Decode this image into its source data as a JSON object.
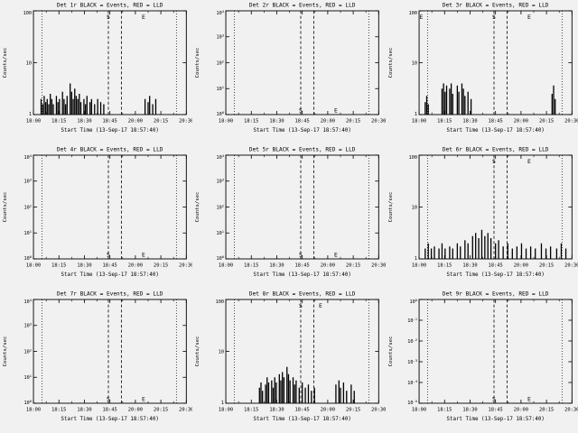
{
  "window": {
    "background": "#f1f1f1",
    "foreground": "#000000"
  },
  "chart_data": [
    {
      "id": "det-1r",
      "title": "Det 1r BLACK = Events, RED = LLD",
      "type": "bar",
      "y_scale": "log",
      "xlabel": "Start Time (13-Sep-17 18:57:40)",
      "ylabel": "Counts/sec",
      "x_ticks": [
        "18:00",
        "18:15",
        "18:30",
        "18:45",
        "20:00",
        "20:15",
        "20:30"
      ],
      "y_ticks": [
        "100",
        "10",
        "1"
      ],
      "y_tick_style": "plain",
      "dotted_lines_x": [
        0.055,
        0.935
      ],
      "dashed_lines_x": [
        0.49,
        0.575
      ],
      "markers": [
        {
          "char": "S",
          "x": 0.49,
          "pos": "top"
        },
        {
          "char": "E",
          "x": 0.72,
          "pos": "top"
        }
      ],
      "bars": [
        [
          0.05,
          0.15
        ],
        [
          0.06,
          0.1
        ],
        [
          0.07,
          0.18
        ],
        [
          0.08,
          0.12
        ],
        [
          0.09,
          0.15
        ],
        [
          0.1,
          0.1
        ],
        [
          0.11,
          0.2
        ],
        [
          0.12,
          0.15
        ],
        [
          0.13,
          0.1
        ],
        [
          0.15,
          0.18
        ],
        [
          0.16,
          0.12
        ],
        [
          0.17,
          0.15
        ],
        [
          0.19,
          0.22
        ],
        [
          0.2,
          0.15
        ],
        [
          0.21,
          0.1
        ],
        [
          0.22,
          0.18
        ],
        [
          0.24,
          0.3
        ],
        [
          0.25,
          0.22
        ],
        [
          0.26,
          0.15
        ],
        [
          0.27,
          0.25
        ],
        [
          0.28,
          0.18
        ],
        [
          0.29,
          0.15
        ],
        [
          0.3,
          0.2
        ],
        [
          0.31,
          0.12
        ],
        [
          0.33,
          0.15
        ],
        [
          0.34,
          0.1
        ],
        [
          0.35,
          0.18
        ],
        [
          0.37,
          0.12
        ],
        [
          0.38,
          0.15
        ],
        [
          0.4,
          0.1
        ],
        [
          0.42,
          0.15
        ],
        [
          0.44,
          0.12
        ],
        [
          0.46,
          0.1
        ],
        [
          0.73,
          0.15
        ],
        [
          0.75,
          0.12
        ],
        [
          0.76,
          0.18
        ],
        [
          0.78,
          0.1
        ],
        [
          0.8,
          0.15
        ]
      ]
    },
    {
      "id": "det-2r",
      "title": "Det 2r BLACK = Events, RED = LLD",
      "type": "bar",
      "y_scale": "log",
      "xlabel": "Start Time (13-Sep-17 18:57:40)",
      "ylabel": "Counts/sec",
      "x_ticks": [
        "18:00",
        "18:15",
        "18:30",
        "18:45",
        "20:00",
        "20:15",
        "20:30"
      ],
      "y_ticks": [
        "10^4",
        "10^3",
        "10^2",
        "10^1",
        "10^0"
      ],
      "y_tick_style": "power",
      "dotted_lines_x": [
        0.055,
        0.935
      ],
      "dashed_lines_x": [
        0.49,
        0.575
      ],
      "markers": [
        {
          "char": "S",
          "x": 0.49,
          "pos": "bottom"
        },
        {
          "char": "E",
          "x": 0.72,
          "pos": "bottom"
        }
      ],
      "bars": []
    },
    {
      "id": "det-3r",
      "title": "Det 3r BLACK = Events, RED = LLD",
      "type": "bar",
      "y_scale": "log",
      "xlabel": "Start Time (13-Sep-17 18:57:40)",
      "ylabel": "Counts/sec",
      "x_ticks": [
        "18:00",
        "18:15",
        "18:30",
        "18:45",
        "20:00",
        "20:15",
        "20:30"
      ],
      "y_ticks": [
        "100",
        "10",
        "1"
      ],
      "y_tick_style": "plain",
      "dotted_lines_x": [
        0.055,
        0.935
      ],
      "dashed_lines_x": [
        0.49,
        0.575
      ],
      "markers": [
        {
          "char": "E",
          "x": 0.015,
          "pos": "top"
        },
        {
          "char": "S",
          "x": 0.49,
          "pos": "top"
        },
        {
          "char": "E",
          "x": 0.72,
          "pos": "top"
        }
      ],
      "bars": [
        [
          0.04,
          0.12
        ],
        [
          0.05,
          0.18
        ],
        [
          0.06,
          0.1
        ],
        [
          0.15,
          0.25
        ],
        [
          0.16,
          0.3
        ],
        [
          0.17,
          0.22
        ],
        [
          0.18,
          0.28
        ],
        [
          0.2,
          0.25
        ],
        [
          0.21,
          0.3
        ],
        [
          0.22,
          0.2
        ],
        [
          0.25,
          0.28
        ],
        [
          0.26,
          0.22
        ],
        [
          0.28,
          0.3
        ],
        [
          0.29,
          0.25
        ],
        [
          0.3,
          0.18
        ],
        [
          0.32,
          0.22
        ],
        [
          0.34,
          0.15
        ],
        [
          0.87,
          0.2
        ],
        [
          0.88,
          0.28
        ],
        [
          0.89,
          0.15
        ]
      ]
    },
    {
      "id": "det-4r",
      "title": "Det 4r BLACK = Events, RED = LLD",
      "type": "bar",
      "y_scale": "log",
      "xlabel": "Start Time (13-Sep-17 18:57:40)",
      "ylabel": "Counts/sec",
      "x_ticks": [
        "18:00",
        "18:15",
        "18:30",
        "18:45",
        "20:00",
        "20:15",
        "20:30"
      ],
      "y_ticks": [
        "10^4",
        "10^3",
        "10^2",
        "10^1",
        "10^0"
      ],
      "y_tick_style": "power",
      "dotted_lines_x": [
        0.055,
        0.935
      ],
      "dashed_lines_x": [
        0.49,
        0.575
      ],
      "markers": [
        {
          "char": "S",
          "x": 0.49,
          "pos": "bottom"
        },
        {
          "char": "E",
          "x": 0.72,
          "pos": "bottom"
        }
      ],
      "bars": []
    },
    {
      "id": "det-5r",
      "title": "Det 5r BLACK = Events, RED = LLD",
      "type": "bar",
      "y_scale": "log",
      "xlabel": "Start Time (13-Sep-17 18:57:40)",
      "ylabel": "Counts/sec",
      "x_ticks": [
        "18:00",
        "18:15",
        "18:30",
        "18:45",
        "20:00",
        "20:15",
        "20:30"
      ],
      "y_ticks": [
        "10^4",
        "10^3",
        "10^2",
        "10^1",
        "10^0"
      ],
      "y_tick_style": "power",
      "dotted_lines_x": [
        0.055,
        0.935
      ],
      "dashed_lines_x": [
        0.49,
        0.575
      ],
      "markers": [
        {
          "char": "S",
          "x": 0.49,
          "pos": "bottom"
        },
        {
          "char": "E",
          "x": 0.72,
          "pos": "bottom"
        }
      ],
      "bars": []
    },
    {
      "id": "det-6r",
      "title": "Det 6r BLACK = Events, RED = LLD",
      "type": "bar",
      "y_scale": "log",
      "xlabel": "Start Time (13-Sep-17 18:57:40)",
      "ylabel": "Counts/sec",
      "x_ticks": [
        "18:00",
        "18:15",
        "18:30",
        "18:45",
        "20:00",
        "20:15",
        "20:30"
      ],
      "y_ticks": [
        "100",
        "10",
        "1"
      ],
      "y_tick_style": "plain",
      "dotted_lines_x": [
        0.055,
        0.935
      ],
      "dashed_lines_x": [
        0.49,
        0.575
      ],
      "markers": [
        {
          "char": "S",
          "x": 0.49,
          "pos": "top"
        },
        {
          "char": "E",
          "x": 0.72,
          "pos": "top"
        }
      ],
      "bars": [
        [
          0.04,
          0.1
        ],
        [
          0.06,
          0.15
        ],
        [
          0.08,
          0.1
        ],
        [
          0.1,
          0.12
        ],
        [
          0.13,
          0.1
        ],
        [
          0.15,
          0.15
        ],
        [
          0.17,
          0.1
        ],
        [
          0.2,
          0.12
        ],
        [
          0.22,
          0.1
        ],
        [
          0.25,
          0.15
        ],
        [
          0.27,
          0.12
        ],
        [
          0.3,
          0.18
        ],
        [
          0.32,
          0.15
        ],
        [
          0.35,
          0.22
        ],
        [
          0.37,
          0.25
        ],
        [
          0.39,
          0.2
        ],
        [
          0.41,
          0.28
        ],
        [
          0.43,
          0.22
        ],
        [
          0.45,
          0.25
        ],
        [
          0.47,
          0.2
        ],
        [
          0.5,
          0.15
        ],
        [
          0.52,
          0.18
        ],
        [
          0.55,
          0.12
        ],
        [
          0.58,
          0.15
        ],
        [
          0.61,
          0.1
        ],
        [
          0.64,
          0.12
        ],
        [
          0.67,
          0.15
        ],
        [
          0.7,
          0.1
        ],
        [
          0.73,
          0.12
        ],
        [
          0.76,
          0.1
        ],
        [
          0.8,
          0.15
        ],
        [
          0.83,
          0.1
        ],
        [
          0.86,
          0.12
        ],
        [
          0.9,
          0.1
        ],
        [
          0.93,
          0.15
        ],
        [
          0.96,
          0.1
        ]
      ]
    },
    {
      "id": "det-7r",
      "title": "Det 7r BLACK = Events, RED = LLD",
      "type": "bar",
      "y_scale": "log",
      "xlabel": "Start Time (13-Sep-17 18:57:40)",
      "ylabel": "Counts/sec",
      "x_ticks": [
        "18:00",
        "18:15",
        "18:30",
        "18:45",
        "20:00",
        "20:15",
        "20:30"
      ],
      "y_ticks": [
        "10^4",
        "10^3",
        "10^2",
        "10^1",
        "10^0"
      ],
      "y_tick_style": "power",
      "dotted_lines_x": [
        0.055,
        0.935
      ],
      "dashed_lines_x": [
        0.49,
        0.575
      ],
      "markers": [
        {
          "char": "S",
          "x": 0.49,
          "pos": "bottom"
        },
        {
          "char": "E",
          "x": 0.72,
          "pos": "bottom"
        }
      ],
      "bars": []
    },
    {
      "id": "det-8r",
      "title": "Det 8r BLACK = Events, RED = LLD",
      "type": "bar",
      "y_scale": "log",
      "xlabel": "Start Time (13-Sep-17 18:57:40)",
      "ylabel": "Counts/sec",
      "x_ticks": [
        "18:00",
        "18:15",
        "18:30",
        "18:45",
        "20:00",
        "20:15",
        "20:30"
      ],
      "y_ticks": [
        "100",
        "10",
        "1"
      ],
      "y_tick_style": "plain",
      "dotted_lines_x": [
        0.055,
        0.935
      ],
      "dashed_lines_x": [
        0.49,
        0.575
      ],
      "markers": [
        {
          "char": "S",
          "x": 0.49,
          "pos": "top"
        },
        {
          "char": "E",
          "x": 0.62,
          "pos": "top"
        }
      ],
      "bars": [
        [
          0.22,
          0.15
        ],
        [
          0.23,
          0.2
        ],
        [
          0.24,
          0.12
        ],
        [
          0.26,
          0.18
        ],
        [
          0.27,
          0.25
        ],
        [
          0.28,
          0.2
        ],
        [
          0.3,
          0.22
        ],
        [
          0.31,
          0.15
        ],
        [
          0.32,
          0.25
        ],
        [
          0.33,
          0.2
        ],
        [
          0.35,
          0.28
        ],
        [
          0.36,
          0.22
        ],
        [
          0.37,
          0.3
        ],
        [
          0.38,
          0.25
        ],
        [
          0.4,
          0.35
        ],
        [
          0.41,
          0.28
        ],
        [
          0.42,
          0.22
        ],
        [
          0.44,
          0.25
        ],
        [
          0.45,
          0.18
        ],
        [
          0.46,
          0.22
        ],
        [
          0.48,
          0.15
        ],
        [
          0.5,
          0.2
        ],
        [
          0.52,
          0.15
        ],
        [
          0.54,
          0.18
        ],
        [
          0.56,
          0.12
        ],
        [
          0.58,
          0.15
        ],
        [
          0.72,
          0.18
        ],
        [
          0.74,
          0.22
        ],
        [
          0.75,
          0.15
        ],
        [
          0.77,
          0.2
        ],
        [
          0.79,
          0.12
        ],
        [
          0.82,
          0.18
        ],
        [
          0.84,
          0.12
        ]
      ]
    },
    {
      "id": "det-9r",
      "title": "Det 9r BLACK = Events, RED = LLD",
      "type": "bar",
      "y_scale": "log",
      "xlabel": "Start Time (13-Sep-17 18:57:40)",
      "ylabel": "Counts/sec",
      "x_ticks": [
        "18:00",
        "18:15",
        "18:30",
        "18:45",
        "20:00",
        "20:15",
        "20:30"
      ],
      "y_ticks": [
        "10^0",
        "10^-1",
        "10^-2",
        "10^-3",
        "10^-4",
        "10^-5"
      ],
      "y_tick_style": "power",
      "dotted_lines_x": [
        0.055,
        0.935
      ],
      "dashed_lines_x": [
        0.49,
        0.575
      ],
      "markers": [
        {
          "char": "S",
          "x": 0.49,
          "pos": "bottom"
        },
        {
          "char": "E",
          "x": 0.72,
          "pos": "bottom"
        }
      ],
      "bars": []
    }
  ]
}
